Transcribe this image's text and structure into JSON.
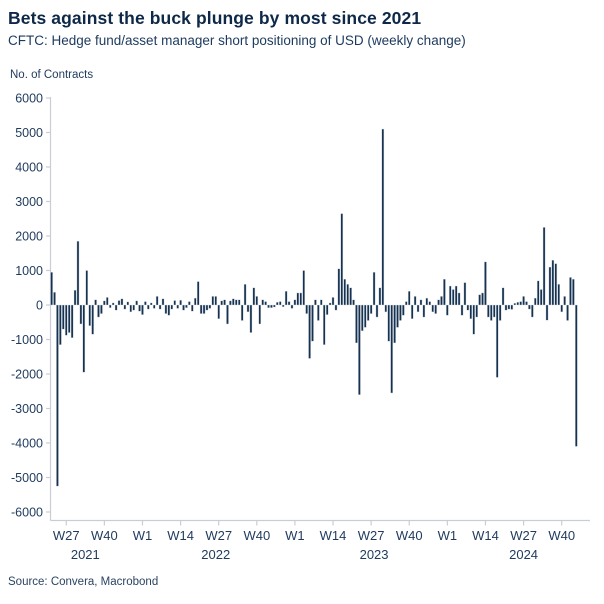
{
  "header": {
    "title": "Bets against the buck plunge by most since 2021",
    "subtitle": "CFTC: Hedge fund/asset manager short positioning of USD (weekly change)"
  },
  "axis_title": "No. of Contracts",
  "source": "Source: Convera, Macrobond",
  "colors": {
    "bar": "#16324f",
    "bar_outline": "#d3dae4",
    "title_text": "#0d2848",
    "body_text": "#1c3a5e",
    "tick_text": "#1e3a5d",
    "axis_line": "#c9ced6",
    "background": "#ffffff"
  },
  "chart_data": {
    "type": "bar",
    "title": "Bets against the buck plunge by most since 2021",
    "subtitle": "CFTC: Hedge fund/asset manager short positioning of USD (weekly change)",
    "ylabel": "No. of Contracts",
    "xlabel": "",
    "ylim": [
      -6000,
      6000
    ],
    "ytick_step": 1000,
    "grid": false,
    "legend": "none",
    "frequency": "weekly",
    "x_start": "2021 week 22",
    "x_end": "2024 week 45",
    "values": [
      950,
      370,
      -5250,
      -1150,
      -700,
      -880,
      -800,
      -950,
      430,
      1850,
      -550,
      -1950,
      1000,
      -600,
      -850,
      150,
      -350,
      -250,
      120,
      220,
      -80,
      60,
      -150,
      130,
      180,
      -120,
      90,
      -200,
      -150,
      120,
      -180,
      -280,
      100,
      -120,
      60,
      -100,
      250,
      -120,
      180,
      -250,
      -300,
      -120,
      130,
      -100,
      140,
      -150,
      -80,
      100,
      -180,
      200,
      680,
      -250,
      -250,
      -150,
      -100,
      250,
      250,
      -400,
      120,
      150,
      -550,
      120,
      180,
      150,
      150,
      -450,
      600,
      -200,
      -800,
      500,
      250,
      -550,
      150,
      100,
      -80,
      -80,
      -60,
      80,
      100,
      -50,
      400,
      100,
      -100,
      150,
      350,
      350,
      1000,
      -250,
      -1550,
      -1050,
      150,
      -450,
      150,
      -1150,
      -280,
      60,
      220,
      -150,
      1050,
      2650,
      750,
      600,
      500,
      150,
      -1100,
      -2600,
      -750,
      -650,
      -450,
      -250,
      950,
      -350,
      500,
      5100,
      -200,
      -1050,
      -2550,
      -1100,
      -650,
      -450,
      -300,
      100,
      400,
      -400,
      250,
      -200,
      150,
      -350,
      200,
      100,
      -200,
      -250,
      150,
      250,
      750,
      -300,
      550,
      450,
      550,
      350,
      -300,
      650,
      -150,
      -400,
      -850,
      -350,
      300,
      350,
      1250,
      -350,
      -450,
      -350,
      -2100,
      -450,
      500,
      -150,
      -120,
      -130,
      50,
      80,
      100,
      250,
      100,
      -120,
      -350,
      200,
      700,
      450,
      2250,
      -440,
      1100,
      1300,
      1200,
      600,
      -200,
      250,
      -450,
      800,
      750,
      -4100
    ],
    "xticks": [
      {
        "index": 5,
        "label": "W27"
      },
      {
        "index": 18,
        "label": "W40"
      },
      {
        "index": 31,
        "label": "W1"
      },
      {
        "index": 44,
        "label": "W14"
      },
      {
        "index": 57,
        "label": "W27"
      },
      {
        "index": 70,
        "label": "W40"
      },
      {
        "index": 83,
        "label": "W1"
      },
      {
        "index": 96,
        "label": "W14"
      },
      {
        "index": 109,
        "label": "W27"
      },
      {
        "index": 122,
        "label": "W40"
      },
      {
        "index": 135,
        "label": "W1"
      },
      {
        "index": 148,
        "label": "W14"
      },
      {
        "index": 161,
        "label": "W27"
      },
      {
        "index": 174,
        "label": "W40"
      }
    ],
    "year_labels": [
      {
        "index": 11.5,
        "label": "2021"
      },
      {
        "index": 56,
        "label": "2022"
      },
      {
        "index": 110,
        "label": "2023"
      },
      {
        "index": 161,
        "label": "2024"
      }
    ]
  }
}
